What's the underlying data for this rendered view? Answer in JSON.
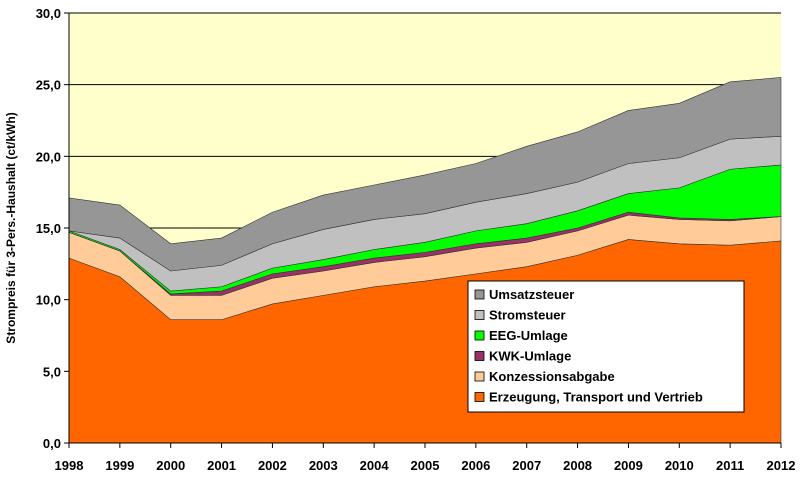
{
  "chart_data": {
    "type": "area",
    "stacked": true,
    "title": "",
    "xlabel": "",
    "ylabel": "Strompreis für 3-Pers.-Haushalt (ct/kWh)",
    "ylim": [
      0,
      30
    ],
    "yticks": [
      "0,0",
      "5,0",
      "10,0",
      "15,0",
      "20,0",
      "25,0",
      "30,0"
    ],
    "categories": [
      "1998",
      "1999",
      "2000",
      "2001",
      "2002",
      "2003",
      "2004",
      "2005",
      "2006",
      "2007",
      "2008",
      "2009",
      "2010",
      "2011",
      "2012"
    ],
    "grid": "horizontal",
    "plot_background": "#FFFFCC",
    "legend_position": "lower-right",
    "series": [
      {
        "name": "Erzeugung, Transport und Vertrieb",
        "color": "#FF6600",
        "values": [
          12.9,
          11.6,
          8.6,
          8.6,
          9.7,
          10.3,
          10.9,
          11.3,
          11.8,
          12.3,
          13.1,
          14.2,
          13.9,
          13.8,
          14.1
        ]
      },
      {
        "name": "Konzessionsabgabe",
        "color": "#FFCC99",
        "values": [
          1.8,
          1.8,
          1.7,
          1.7,
          1.8,
          1.7,
          1.7,
          1.7,
          1.8,
          1.7,
          1.7,
          1.7,
          1.7,
          1.7,
          1.7
        ]
      },
      {
        "name": "KWK-Umlage",
        "color": "#993366",
        "values": [
          0.0,
          0.0,
          0.1,
          0.3,
          0.3,
          0.3,
          0.3,
          0.3,
          0.3,
          0.3,
          0.2,
          0.2,
          0.1,
          0.1,
          0.0
        ]
      },
      {
        "name": "EEG-Umlage",
        "color": "#00FF00",
        "values": [
          0.1,
          0.1,
          0.2,
          0.3,
          0.4,
          0.5,
          0.6,
          0.7,
          0.9,
          1.0,
          1.2,
          1.3,
          2.1,
          3.5,
          3.6
        ]
      },
      {
        "name": "Stromsteuer",
        "color": "#C0C0C0",
        "values": [
          0.0,
          0.8,
          1.4,
          1.5,
          1.7,
          2.1,
          2.1,
          2.0,
          2.0,
          2.1,
          2.0,
          2.1,
          2.1,
          2.1,
          2.0
        ]
      },
      {
        "name": "Umsatzsteuer",
        "color": "#969696",
        "values": [
          2.3,
          2.3,
          1.9,
          1.9,
          2.2,
          2.4,
          2.4,
          2.7,
          2.7,
          3.3,
          3.5,
          3.7,
          3.8,
          4.0,
          4.1
        ]
      }
    ],
    "legend_order": [
      "Umsatzsteuer",
      "Stromsteuer",
      "EEG-Umlage",
      "KWK-Umlage",
      "Konzessionsabgabe",
      "Erzeugung, Transport und Vertrieb"
    ]
  }
}
